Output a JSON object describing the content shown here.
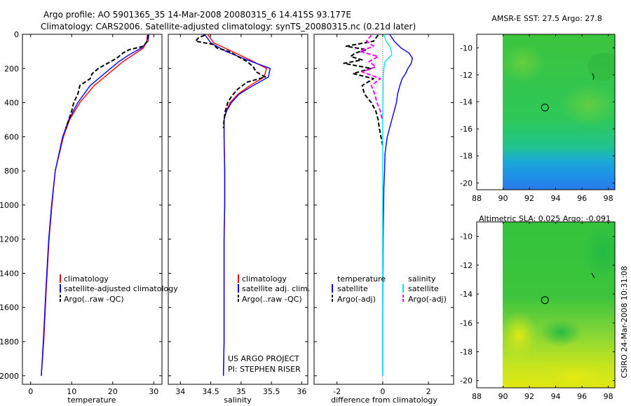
{
  "header": {
    "title_line1": "Argo profile: AO 5901365_35 14-Mar-2008 20080315_6 14.415S 93.177E",
    "title_line2": "Climatology: CARS2006. Satellite-adjusted climatology: synTS_20080315.nc (0.21d later)"
  },
  "credit": {
    "line1": "US ARGO PROJECT",
    "line2": "PI: STEPHEN RISER",
    "stamp": "CSIRO 24-Mar-2008 10:31:08"
  },
  "colors": {
    "climatology": "#ff0000",
    "satellite": "#0000ff",
    "argo": "#000000",
    "sal_satellite": "#00e5ee",
    "sal_argo": "#ff00ff"
  },
  "chart_data": [
    {
      "id": "temperature",
      "type": "line",
      "xlabel": "temperature",
      "xlim": [
        -2,
        32
      ],
      "xticks": [
        "0",
        "10",
        "20",
        "30"
      ],
      "xtick_values": [
        0,
        10,
        20,
        30
      ],
      "ylim": [
        0,
        2050
      ],
      "yticks": [
        "0",
        "200",
        "400",
        "600",
        "800",
        "1000",
        "1200",
        "1400",
        "1600",
        "1800",
        "2000"
      ],
      "ytick_values": [
        0,
        200,
        400,
        600,
        800,
        1000,
        1200,
        1400,
        1600,
        1800,
        2000
      ],
      "legend": [
        "climatology",
        "satellite-adjusted climatology",
        "Argo(..raw -QC)"
      ],
      "series": [
        {
          "name": "climatology",
          "color": "#ff0000",
          "style": "solid",
          "depth": [
            0,
            40,
            80,
            120,
            160,
            200,
            250,
            300,
            400,
            500,
            600,
            800,
            1000,
            1200,
            1500,
            1800,
            2000
          ],
          "values": [
            28.5,
            28.3,
            27.5,
            25,
            22.5,
            20.5,
            18,
            15.5,
            12,
            9.5,
            8,
            6,
            5.2,
            4.5,
            3.8,
            3.2,
            2.6
          ]
        },
        {
          "name": "satellite-adjusted climatology",
          "color": "#0000ff",
          "style": "solid",
          "depth": [
            0,
            40,
            80,
            120,
            160,
            200,
            250,
            300,
            400,
            500,
            600,
            800,
            1000,
            1200,
            1500,
            1800,
            2000
          ],
          "values": [
            28.8,
            28.6,
            27,
            24,
            21.5,
            19.5,
            17,
            14.5,
            11.5,
            9.3,
            7.8,
            6,
            5.1,
            4.4,
            3.7,
            3.1,
            2.6
          ]
        },
        {
          "name": "Argo(..raw -QC)",
          "color": "#000000",
          "style": "dashed",
          "depth": [
            5,
            40,
            70,
            90,
            110,
            140,
            160,
            200,
            230,
            260,
            300,
            350,
            400,
            450,
            500,
            550
          ],
          "values": [
            28.6,
            28.4,
            27.5,
            24,
            22.5,
            21,
            19.5,
            16.5,
            15,
            14.5,
            12,
            11.5,
            10.5,
            10,
            9.3,
            8.6
          ]
        }
      ]
    },
    {
      "id": "salinity",
      "type": "line",
      "xlabel": "salinity",
      "xlim": [
        33.8,
        36.1
      ],
      "xticks": [
        "34",
        "34.5",
        "35",
        "35.5",
        "36"
      ],
      "xtick_values": [
        34,
        34.5,
        35,
        35.5,
        36
      ],
      "ylim": [
        0,
        2050
      ],
      "legend": [
        "climatology",
        "satellite adj. clim.",
        "Argo(..raw -QC)"
      ],
      "series": [
        {
          "name": "climatology",
          "color": "#ff0000",
          "style": "solid",
          "depth": [
            0,
            50,
            100,
            150,
            200,
            250,
            300,
            350,
            400,
            450,
            500,
            600,
            800,
            1000,
            1200,
            1500,
            1800,
            2000
          ],
          "values": [
            34.45,
            34.55,
            34.85,
            35.15,
            35.42,
            35.38,
            35.15,
            34.95,
            34.82,
            34.75,
            34.72,
            34.72,
            34.73,
            34.73,
            34.72,
            34.72,
            34.72,
            34.71
          ]
        },
        {
          "name": "satellite adj. clim.",
          "color": "#0000ff",
          "style": "solid",
          "depth": [
            0,
            50,
            100,
            150,
            200,
            250,
            300,
            350,
            400,
            450,
            500,
            600,
            800,
            1000,
            1200,
            1500,
            1800,
            2000
          ],
          "values": [
            34.4,
            34.5,
            34.75,
            35.1,
            35.48,
            35.45,
            35.2,
            34.97,
            34.84,
            34.76,
            34.72,
            34.72,
            34.73,
            34.73,
            34.72,
            34.72,
            34.72,
            34.71
          ]
        },
        {
          "name": "Argo(..raw -QC)",
          "color": "#000000",
          "style": "dashed",
          "depth": [
            5,
            20,
            40,
            60,
            80,
            100,
            130,
            160,
            190,
            220,
            250,
            280,
            320,
            360,
            400,
            450,
            500,
            550
          ],
          "values": [
            34.4,
            34.3,
            34.25,
            34.55,
            34.6,
            34.8,
            34.95,
            35.1,
            35.2,
            35.25,
            35.4,
            35.1,
            34.95,
            34.85,
            34.78,
            34.74,
            34.72,
            34.71
          ]
        }
      ]
    },
    {
      "id": "difference",
      "type": "line",
      "xlabel": "difference from climatology",
      "xlim": [
        -3,
        3.1
      ],
      "xticks": [
        "-2",
        "0",
        "2"
      ],
      "xtick_values": [
        -2,
        0,
        2
      ],
      "ylim": [
        0,
        2050
      ],
      "legend": [
        "temperature",
        "satellite",
        "Argo(-adj)",
        "salinity",
        "satellite",
        "Argo(-adj)"
      ],
      "series": [
        {
          "name": "temperature satellite",
          "color": "#0000ff",
          "style": "solid",
          "depth": [
            0,
            40,
            80,
            110,
            140,
            170,
            200,
            230,
            260,
            300,
            350,
            400,
            450,
            500,
            550,
            600,
            700,
            800,
            900,
            1000,
            1200,
            1400,
            1600,
            1800,
            2000
          ],
          "values": [
            0.3,
            0.5,
            0.8,
            1.15,
            1.3,
            1.25,
            1.1,
            1.0,
            0.85,
            0.75,
            0.65,
            0.6,
            0.5,
            0.4,
            0.3,
            0.2,
            0.1,
            0.08,
            0.05,
            0.04,
            0.02,
            0.01,
            0.0,
            0.0,
            0.0
          ]
        },
        {
          "name": "temperature Argo(-adj)",
          "color": "#000000",
          "style": "dashed",
          "depth": [
            5,
            40,
            70,
            90,
            110,
            130,
            150,
            170,
            200,
            230,
            260,
            300,
            350,
            400,
            450,
            500,
            550,
            600,
            650
          ],
          "values": [
            -0.2,
            -0.4,
            -1.6,
            -0.7,
            -1.2,
            -1.4,
            -0.9,
            -1.7,
            -0.5,
            -1.3,
            -0.4,
            -0.9,
            -0.8,
            -0.5,
            -0.3,
            -0.2,
            -0.15,
            -0.08,
            0.0
          ]
        },
        {
          "name": "salinity satellite",
          "color": "#00e5ee",
          "style": "solid",
          "depth": [
            0,
            40,
            80,
            120,
            160,
            200,
            250,
            300,
            400,
            500,
            700,
            1000,
            1400,
            2000
          ],
          "values": [
            0.05,
            0.15,
            0.35,
            0.4,
            0.1,
            0.05,
            0.02,
            0.02,
            0.01,
            0.0,
            0.0,
            0.0,
            0.0,
            0.0
          ]
        },
        {
          "name": "salinity Argo(-adj)",
          "color": "#ff00ff",
          "style": "dashed",
          "depth": [
            5,
            40,
            70,
            100,
            130,
            160,
            190,
            220,
            260,
            300,
            350,
            400,
            450,
            500
          ],
          "values": [
            -0.5,
            -0.7,
            -0.4,
            -1.0,
            -0.2,
            -0.6,
            -0.3,
            -0.9,
            -0.1,
            -0.5,
            -0.35,
            -0.25,
            -0.1,
            -0.02
          ]
        }
      ]
    },
    {
      "id": "sst_map",
      "type": "heatmap",
      "title": "AMSR-E SST: 27.5 Argo: 27.8",
      "xlim": [
        88,
        98.5
      ],
      "ylim": [
        -20.5,
        -9
      ],
      "xticks": [
        "88",
        "90",
        "92",
        "94",
        "96",
        "98"
      ],
      "xtick_values": [
        88,
        90,
        92,
        94,
        96,
        98
      ],
      "yticks": [
        "-10",
        "-12",
        "-14",
        "-16",
        "-18",
        "-20"
      ],
      "ytick_values": [
        -10,
        -12,
        -14,
        -16,
        -18,
        -20
      ],
      "data_extent": [
        90,
        98.5
      ],
      "argo_marker": [
        93.18,
        -14.42
      ]
    },
    {
      "id": "sla_map",
      "type": "heatmap",
      "title": "Altimetric SLA: 0.025 Argo: -0.091",
      "xlim": [
        88,
        98.5
      ],
      "ylim": [
        -20.5,
        -9
      ],
      "xticks": [
        "88",
        "90",
        "92",
        "94",
        "96",
        "98"
      ],
      "xtick_values": [
        88,
        90,
        92,
        94,
        96,
        98
      ],
      "yticks": [
        "-10",
        "-12",
        "-14",
        "-16",
        "-18",
        "-20"
      ],
      "ytick_values": [
        -10,
        -12,
        -14,
        -16,
        -18,
        -20
      ],
      "data_extent": [
        90,
        98.5
      ],
      "argo_marker": [
        93.18,
        -14.42
      ]
    }
  ]
}
